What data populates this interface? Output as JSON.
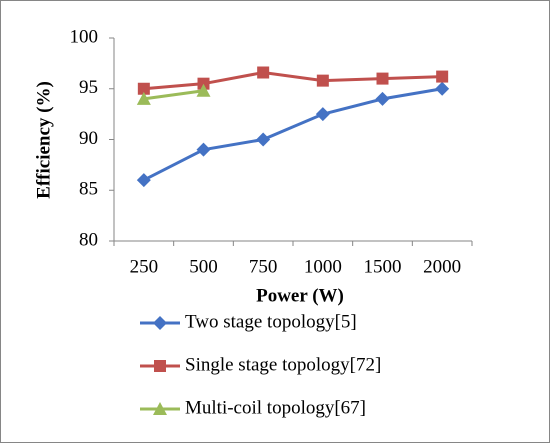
{
  "chart_data": {
    "type": "line",
    "xlabel": "Power (W)",
    "ylabel": "Efficiency (%)",
    "categories": [
      "250",
      "500",
      "750",
      "1000",
      "1500",
      "2000"
    ],
    "series": [
      {
        "name": "Two stage topology[5]",
        "color": "#4472c4",
        "marker": "diamond",
        "values": [
          86,
          89,
          90,
          92.5,
          94,
          95
        ]
      },
      {
        "name": "Single stage topology[72]",
        "color": "#c0504d",
        "marker": "square",
        "values": [
          95,
          95.5,
          96.6,
          95.8,
          96,
          96.2
        ]
      },
      {
        "name": "Multi-coil topology[67]",
        "color": "#9bbb59",
        "marker": "triangle",
        "values": [
          94,
          94.8,
          null,
          null,
          null,
          null
        ]
      }
    ],
    "ylim": [
      80,
      100
    ],
    "yticks": [
      80,
      85,
      90,
      95,
      100
    ],
    "grid": false,
    "legend": "bottom"
  }
}
